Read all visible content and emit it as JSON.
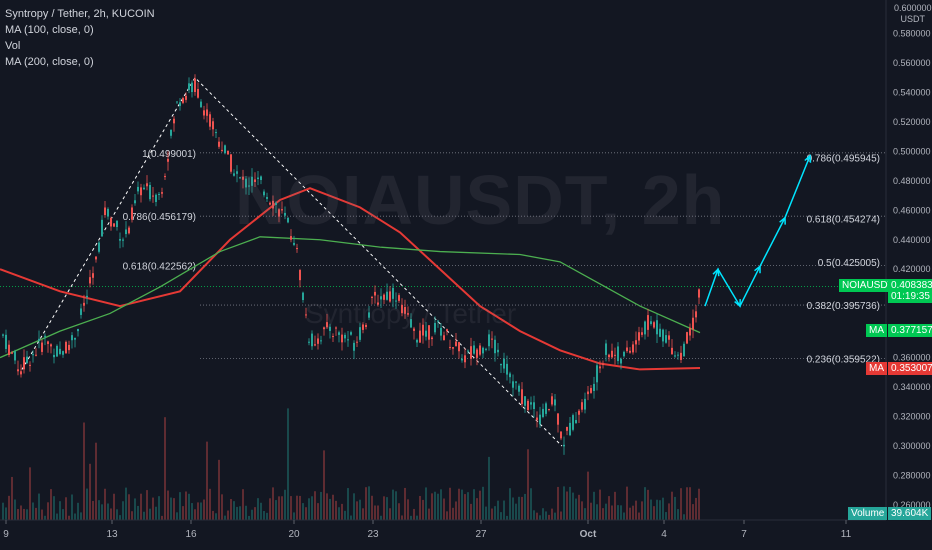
{
  "legend": {
    "title": "Syntropy / Tether, 2h, KUCOIN",
    "line1": "MA (100, close, 0)",
    "line2": "Vol",
    "line3": "MA (200, close, 0)"
  },
  "watermark": {
    "main": "NOIAUSDT, 2h",
    "sub": "Syntropy / Tether"
  },
  "axis": {
    "top_label": "0.600000",
    "unit": "USDT"
  },
  "tags": {
    "symbol": "NOIAUSDT",
    "price": "0.408383",
    "countdown": "01:19:35",
    "ma1_label": "MA",
    "ma1_value": "0.377157",
    "ma2_label": "MA",
    "ma2_value": "0.353007",
    "volume_label": "Volume",
    "volume_value": "39.604K"
  },
  "colors": {
    "bg": "#131722",
    "up": "#26a69a",
    "down": "#ef5350",
    "green_line": "#00c853",
    "ma100": "#4caf50",
    "ma200": "#e53935",
    "cyan": "#00e5ff",
    "price_tag": "#00c853",
    "ma200_tag": "#e53935"
  },
  "chart_data": {
    "type": "candlestick",
    "ylim": [
      0.25,
      0.6
    ],
    "y_ticks": [
      "0.600000",
      "0.580000",
      "0.560000",
      "0.540000",
      "0.520000",
      "0.500000",
      "0.480000",
      "0.460000",
      "0.440000",
      "0.420000",
      "0.400000",
      "0.380000",
      "0.360000",
      "0.340000",
      "0.320000",
      "0.300000",
      "0.280000",
      "0.260000"
    ],
    "x_ticks": [
      "9",
      "13",
      "16",
      "20",
      "23",
      "27",
      "Oct",
      "4",
      "7",
      "11"
    ],
    "fib_left": [
      {
        "label": "1(0.499001)",
        "value": 0.499
      },
      {
        "label": "0.786(0.456179)",
        "value": 0.456
      },
      {
        "label": "0.618(0.422562)",
        "value": 0.4226
      }
    ],
    "fib_right": [
      {
        "label": "0.786(0.495945)",
        "value": 0.4959
      },
      {
        "label": "0.618(0.454274)",
        "value": 0.4543
      },
      {
        "label": "0.5(0.425005)",
        "value": 0.425
      },
      {
        "label": "0.382(0.395736)",
        "value": 0.3957
      },
      {
        "label": "0.236(0.359522)",
        "value": 0.3595
      }
    ],
    "ma100_value": 0.377157,
    "ma200_value": 0.353007,
    "last_price": 0.408383
  }
}
